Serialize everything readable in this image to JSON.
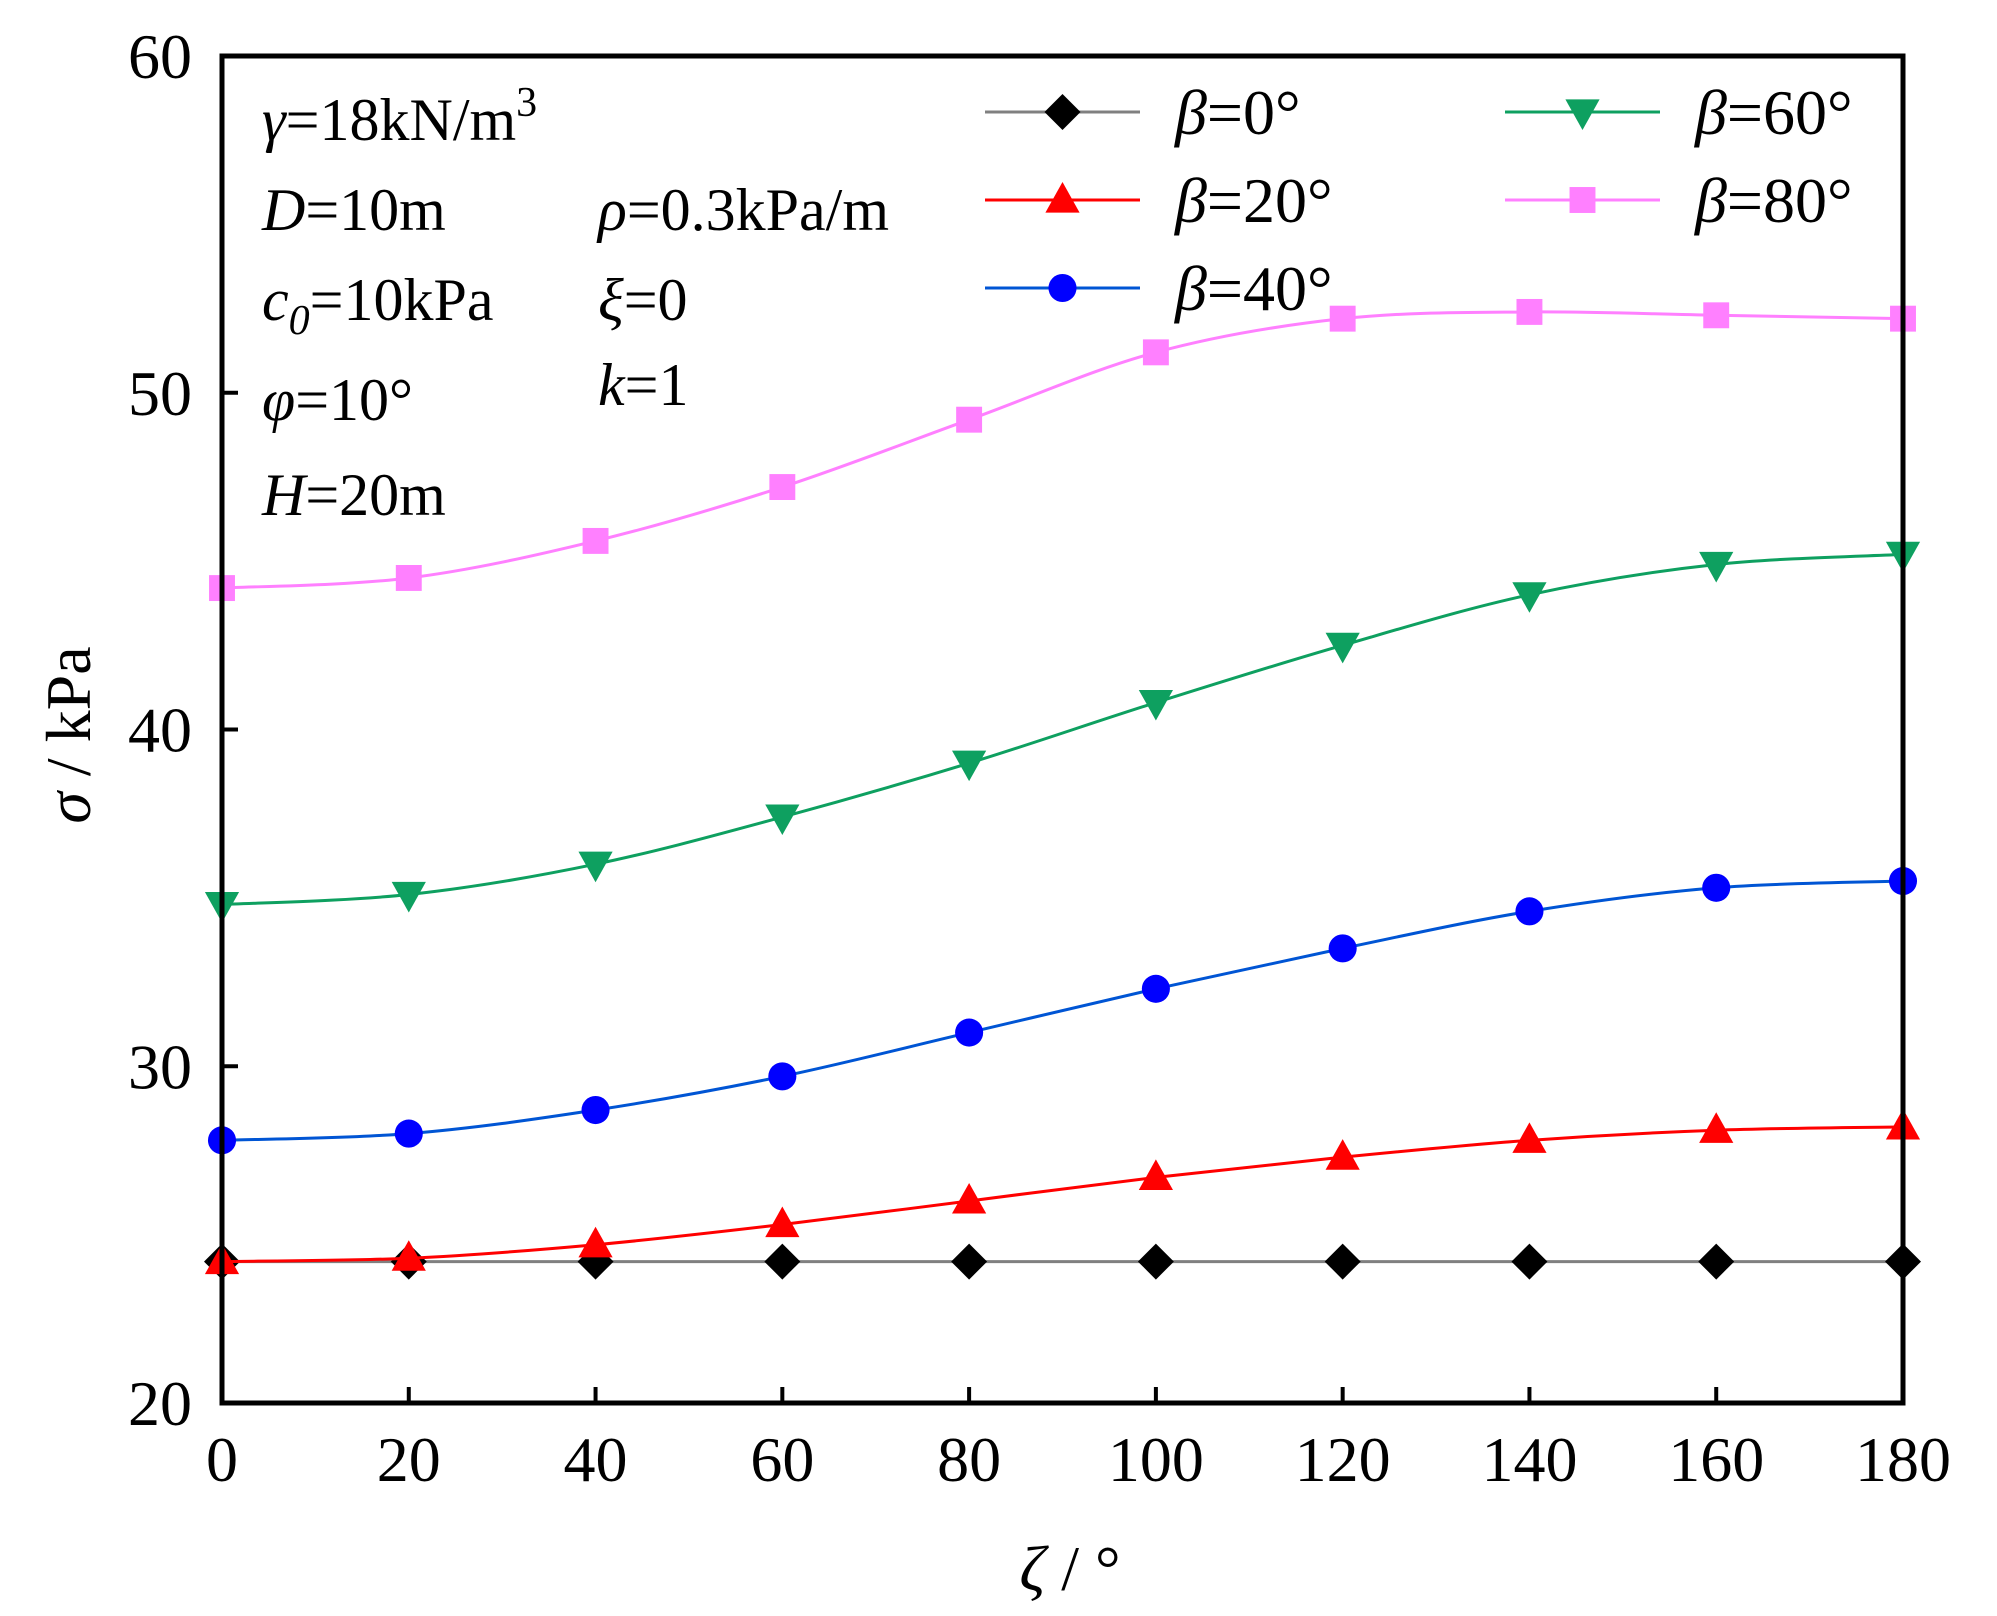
{
  "chart_data": {
    "type": "line",
    "title": "",
    "xlabel": "ζ / °",
    "xlabel_symbol": "ζ",
    "xlabel_unit": " / °",
    "ylabel": "σ / kPa",
    "ylabel_symbol": "σ",
    "ylabel_unit": " / kPa",
    "xlim": [
      0,
      180
    ],
    "ylim": [
      20,
      60
    ],
    "xticks": [
      0,
      20,
      40,
      60,
      80,
      100,
      120,
      140,
      160,
      180
    ],
    "yticks": [
      20,
      30,
      40,
      50,
      60
    ],
    "grid": false,
    "legend_position": "top-right",
    "x": [
      0,
      20,
      40,
      60,
      80,
      100,
      120,
      140,
      160,
      180
    ],
    "series": [
      {
        "name": "β=0°",
        "symbol": "β",
        "value_text": "=0°",
        "color": "#808080",
        "marker": "diamond",
        "marker_color": "#000000",
        "values": [
          24.2,
          24.2,
          24.2,
          24.2,
          24.2,
          24.2,
          24.2,
          24.2,
          24.2,
          24.2
        ]
      },
      {
        "name": "β=20°",
        "symbol": "β",
        "value_text": "=20°",
        "color": "#ff0000",
        "marker": "triangle-up",
        "marker_color": "#ff0000",
        "values": [
          24.2,
          24.3,
          24.7,
          25.3,
          26.0,
          26.7,
          27.3,
          27.8,
          28.1,
          28.2
        ]
      },
      {
        "name": "β=40°",
        "symbol": "β",
        "value_text": "=40°",
        "color": "#0055d4",
        "marker": "circle",
        "marker_color": "#0000ff",
        "values": [
          27.8,
          28.0,
          28.7,
          29.7,
          31.0,
          32.3,
          33.5,
          34.6,
          35.3,
          35.5
        ]
      },
      {
        "name": "β=60°",
        "symbol": "β",
        "value_text": "=60°",
        "color": "#0ea060",
        "marker": "triangle-down",
        "marker_color": "#0ea060",
        "values": [
          34.8,
          35.1,
          36.0,
          37.4,
          39.0,
          40.8,
          42.5,
          44.0,
          44.9,
          45.2
        ]
      },
      {
        "name": "β=80°",
        "symbol": "β",
        "value_text": "=80°",
        "color": "#ff80ff",
        "marker": "square",
        "marker_color": "#ff80ff",
        "values": [
          44.2,
          44.5,
          45.6,
          47.2,
          49.2,
          51.2,
          52.2,
          52.4,
          52.3,
          52.2
        ]
      }
    ],
    "annotations": [
      {
        "symbol": "γ",
        "text": "=18kN/m",
        "sup": "3"
      },
      {
        "symbol": "D",
        "text": "=10m"
      },
      {
        "symbol": "ρ",
        "text": "=0.3kPa/m"
      },
      {
        "symbol": "c",
        "sub": "0",
        "text": "=10kPa"
      },
      {
        "symbol": "ξ",
        "text": "=0"
      },
      {
        "symbol": "φ",
        "text": "=10°"
      },
      {
        "symbol": "k",
        "text": "=1"
      },
      {
        "symbol": "H",
        "text": "=20m"
      }
    ]
  }
}
